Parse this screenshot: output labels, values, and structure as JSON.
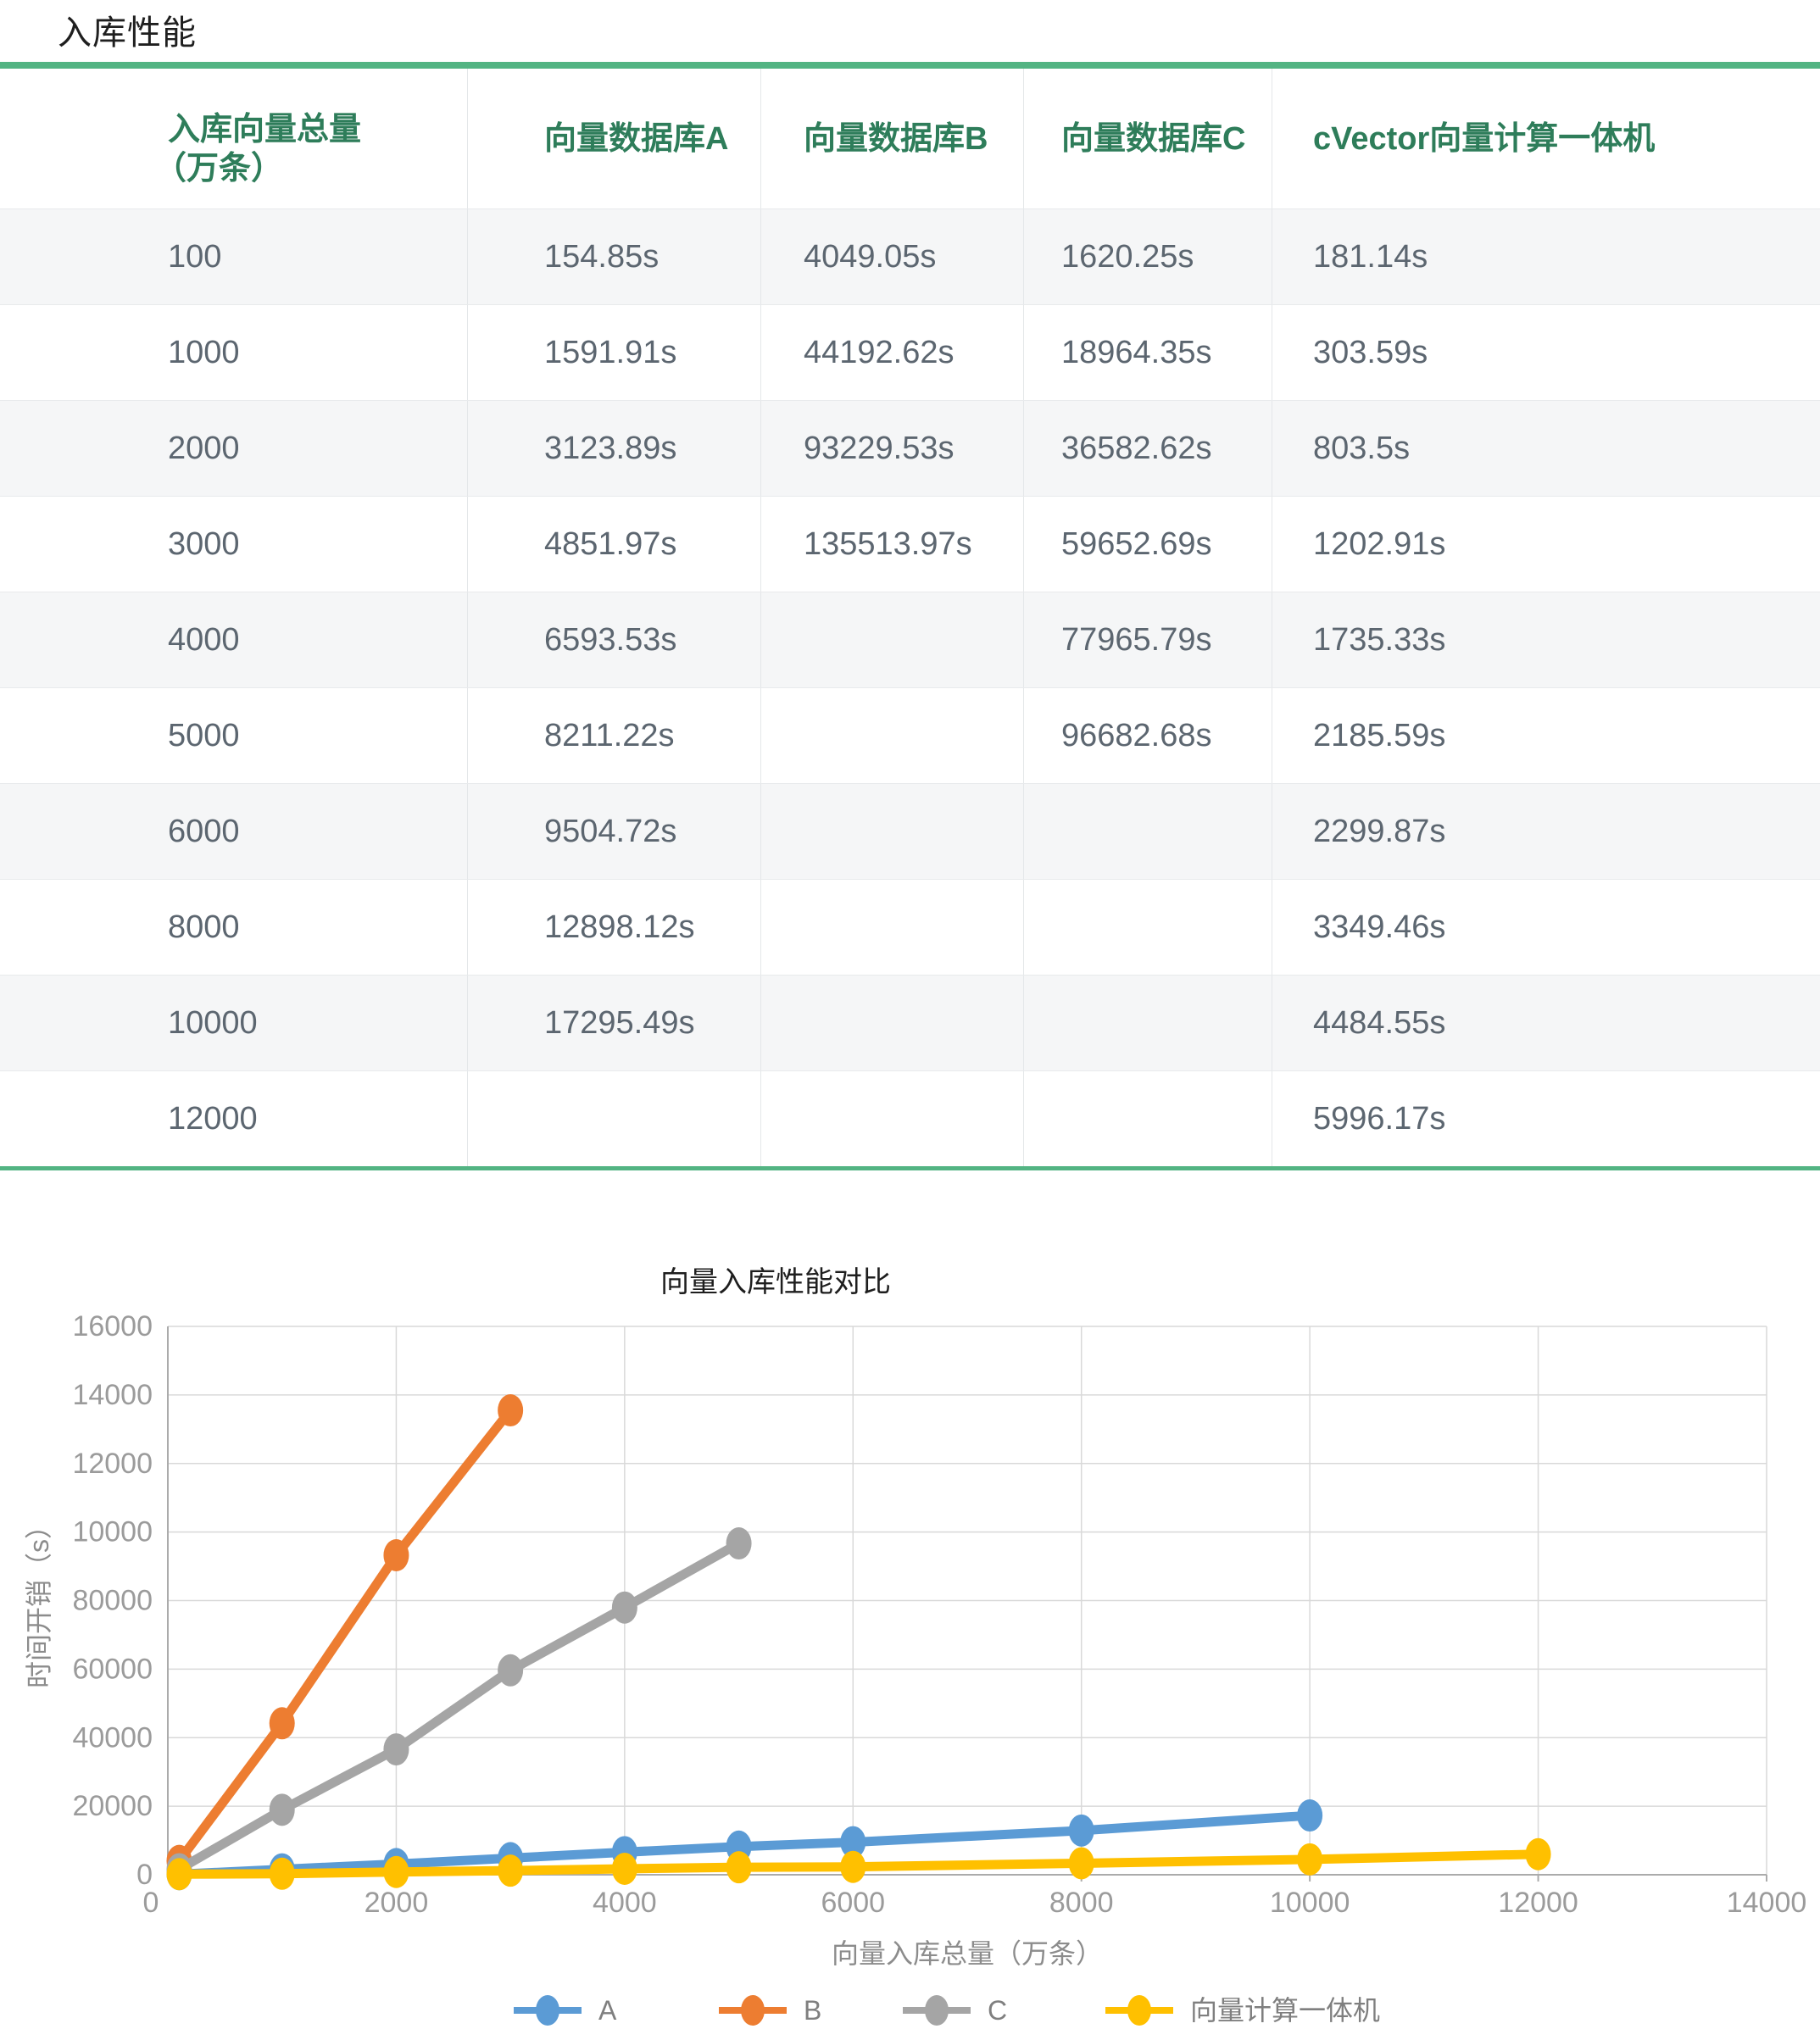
{
  "page": {
    "title": "入库性能"
  },
  "table": {
    "columns": [
      {
        "title": "入库向量总量",
        "subtitle": "（万条）"
      },
      {
        "title": "向量数据库A"
      },
      {
        "title": "向量数据库B"
      },
      {
        "title": "向量数据库C"
      },
      {
        "title": "cVector向量计算一体机"
      }
    ],
    "rows": [
      [
        "100",
        "154.85s",
        "4049.05s",
        "1620.25s",
        "181.14s"
      ],
      [
        "1000",
        "1591.91s",
        "44192.62s",
        "18964.35s",
        "303.59s"
      ],
      [
        "2000",
        "3123.89s",
        "93229.53s",
        "36582.62s",
        "803.5s"
      ],
      [
        "3000",
        "4851.97s",
        "135513.97s",
        "59652.69s",
        "1202.91s"
      ],
      [
        "4000",
        "6593.53s",
        "",
        "77965.79s",
        "1735.33s"
      ],
      [
        "5000",
        "8211.22s",
        "",
        "96682.68s",
        "2185.59s"
      ],
      [
        "6000",
        "9504.72s",
        "",
        "",
        "2299.87s"
      ],
      [
        "8000",
        "12898.12s",
        "",
        "",
        "3349.46s"
      ],
      [
        "10000",
        "17295.49s",
        "",
        "",
        "4484.55s"
      ],
      [
        "12000",
        "",
        "",
        "",
        "5996.17s"
      ]
    ]
  },
  "chart_data": {
    "type": "line",
    "title": "向量入库性能对比",
    "xlabel": "向量入库总量（万条）",
    "ylabel": "时间开销（s）",
    "xlim": [
      0,
      14000
    ],
    "y_value_max": 160000,
    "grid": true,
    "legend_position": "bottom",
    "x_ticks": [
      0,
      2000,
      4000,
      6000,
      8000,
      10000,
      12000,
      14000
    ],
    "x_tick_labels": [
      "0",
      "2000",
      "4000",
      "6000",
      "8000",
      "10000",
      "12000",
      "14000"
    ],
    "y_tick_labels_bottom_to_top": [
      "0",
      "20000",
      "40000",
      "60000",
      "80000",
      "10000",
      "12000",
      "14000",
      "16000"
    ],
    "series": [
      {
        "name": "A",
        "color": "#5B9BD5",
        "points": [
          [
            100,
            154.85
          ],
          [
            1000,
            1591.91
          ],
          [
            2000,
            3123.89
          ],
          [
            3000,
            4851.97
          ],
          [
            4000,
            6593.53
          ],
          [
            5000,
            8211.22
          ],
          [
            6000,
            9504.72
          ],
          [
            8000,
            12898.12
          ],
          [
            10000,
            17295.49
          ]
        ]
      },
      {
        "name": "B",
        "color": "#ED7D31",
        "points": [
          [
            100,
            4049.05
          ],
          [
            1000,
            44192.62
          ],
          [
            2000,
            93229.53
          ],
          [
            3000,
            135513.97
          ]
        ]
      },
      {
        "name": "C",
        "color": "#A5A5A5",
        "points": [
          [
            100,
            1620.25
          ],
          [
            1000,
            18964.35
          ],
          [
            2000,
            36582.62
          ],
          [
            3000,
            59652.69
          ],
          [
            4000,
            77965.79
          ],
          [
            5000,
            96682.68
          ]
        ]
      },
      {
        "name": "向量计算一体机",
        "color": "#FFC000",
        "points": [
          [
            100,
            181.14
          ],
          [
            1000,
            303.59
          ],
          [
            2000,
            803.5
          ],
          [
            3000,
            1202.91
          ],
          [
            4000,
            1735.33
          ],
          [
            5000,
            2185.59
          ],
          [
            6000,
            2299.87
          ],
          [
            8000,
            3349.46
          ],
          [
            10000,
            4484.55
          ],
          [
            12000,
            5996.17
          ]
        ]
      }
    ],
    "colors": {
      "table_border_green": "#53B483",
      "header_text_green": "#2E7D5A",
      "row_stripe": "#F5F6F7",
      "cell_text": "#5C6670",
      "grid_line": "#D9D9D9",
      "axis_line": "#ABABAB",
      "tick_text": "#9B9B9B"
    }
  }
}
